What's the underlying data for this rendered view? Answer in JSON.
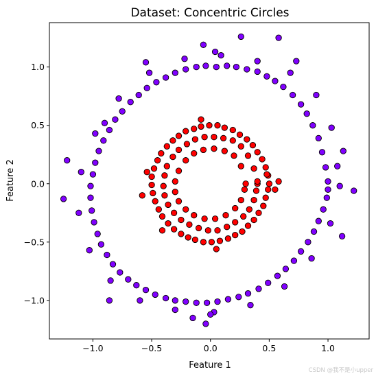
{
  "chart_data": {
    "type": "scatter",
    "title": "Dataset: Concentric Circles",
    "xlabel": "Feature 1",
    "ylabel": "Feature 2",
    "xlim": [
      -1.37,
      1.35
    ],
    "ylim": [
      -1.33,
      1.38
    ],
    "xticks": [
      -1.0,
      -0.5,
      0.0,
      0.5,
      1.0
    ],
    "xtick_labels": [
      "−1.0",
      "−0.5",
      "0.0",
      "0.5",
      "1.0"
    ],
    "yticks": [
      -1.0,
      -0.5,
      0.0,
      0.5,
      1.0
    ],
    "ytick_labels": [
      "−1.0",
      "−0.5",
      "0.0",
      "0.5",
      "1.0"
    ],
    "grid": false,
    "series": [
      {
        "color": "#8000ff",
        "shape": "ring",
        "approx_radius": 1.0,
        "x": [
          1.0,
          0.98,
          0.95,
          0.92,
          0.87,
          0.82,
          0.77,
          0.7,
          0.62,
          0.55,
          0.48,
          0.4,
          0.31,
          0.22,
          0.14,
          0.05,
          -0.04,
          -0.12,
          -0.21,
          -0.3,
          -0.38,
          -0.46,
          -0.54,
          -0.61,
          -0.68,
          -0.75,
          -0.81,
          -0.86,
          -0.91,
          -0.95,
          -0.98,
          -1.0,
          -1.02,
          -1.02,
          -1.01,
          -0.99,
          -0.96,
          -0.93,
          -0.88,
          -0.83,
          -0.77,
          -0.7,
          -0.63,
          -0.55,
          -0.47,
          -0.38,
          -0.3,
          -0.21,
          -0.12,
          -0.03,
          0.06,
          0.15,
          0.24,
          0.32,
          0.41,
          0.49,
          0.57,
          0.64,
          0.71,
          0.77,
          0.83,
          0.88,
          0.92,
          0.96,
          0.99,
          1.0,
          1.08,
          1.03,
          0.9,
          0.68,
          0.4,
          0.09,
          -0.22,
          -0.52,
          -0.78,
          -0.98,
          -1.1,
          -1.12,
          -1.03,
          -0.85,
          -0.6,
          -0.3,
          0.03,
          0.34,
          0.63,
          0.86,
          1.02,
          1.1,
          1.13,
          1.12,
          0.58,
          0.04,
          -1.25,
          1.22,
          -1.22,
          -0.9,
          -0.06,
          -0.04,
          0.0,
          0.73,
          -0.15,
          0.26,
          -0.55,
          -0.86
        ],
        "y": [
          0.02,
          0.14,
          0.27,
          0.39,
          0.5,
          0.6,
          0.68,
          0.76,
          0.83,
          0.88,
          0.92,
          0.96,
          0.98,
          1.0,
          1.01,
          1.0,
          1.01,
          1.0,
          0.98,
          0.95,
          0.91,
          0.87,
          0.82,
          0.76,
          0.7,
          0.62,
          0.55,
          0.46,
          0.37,
          0.28,
          0.18,
          0.08,
          -0.02,
          -0.12,
          -0.23,
          -0.33,
          -0.43,
          -0.52,
          -0.61,
          -0.69,
          -0.76,
          -0.82,
          -0.87,
          -0.91,
          -0.95,
          -0.98,
          -1.0,
          -1.01,
          -1.02,
          -1.02,
          -1.01,
          -0.99,
          -0.97,
          -0.94,
          -0.9,
          -0.85,
          -0.79,
          -0.73,
          -0.66,
          -0.58,
          -0.5,
          -0.41,
          -0.32,
          -0.22,
          -0.12,
          -0.05,
          0.15,
          0.48,
          0.76,
          0.95,
          1.05,
          1.1,
          1.07,
          0.95,
          0.73,
          0.43,
          0.1,
          -0.25,
          -0.57,
          -0.83,
          -1.0,
          -1.08,
          -1.1,
          -1.04,
          -0.88,
          -0.64,
          -0.34,
          -0.02,
          0.28,
          -0.45,
          1.25,
          1.13,
          -0.13,
          -0.06,
          0.2,
          0.52,
          1.19,
          -1.2,
          -1.12,
          1.05,
          -1.15,
          1.26,
          1.04,
          -1.0
        ]
      },
      {
        "color": "#ff0000",
        "shape": "ring",
        "approx_radius": 0.4,
        "x": [
          0.5,
          0.49,
          0.47,
          0.44,
          0.4,
          0.36,
          0.31,
          0.25,
          0.19,
          0.12,
          0.06,
          -0.01,
          -0.08,
          -0.14,
          -0.21,
          -0.27,
          -0.32,
          -0.37,
          -0.42,
          -0.45,
          -0.48,
          -0.5,
          -0.5,
          -0.49,
          -0.47,
          -0.44,
          -0.41,
          -0.36,
          -0.31,
          -0.25,
          -0.19,
          -0.13,
          -0.06,
          0.01,
          0.08,
          0.15,
          0.21,
          0.27,
          0.32,
          0.37,
          0.41,
          0.45,
          0.47,
          0.49,
          0.4,
          0.37,
          0.32,
          0.26,
          0.19,
          0.11,
          0.03,
          -0.05,
          -0.13,
          -0.2,
          -0.27,
          -0.32,
          -0.37,
          -0.39,
          -0.4,
          -0.39,
          -0.36,
          -0.31,
          -0.25,
          -0.18,
          -0.1,
          -0.02,
          0.06,
          0.14,
          0.21,
          0.28,
          0.33,
          0.37,
          0.39,
          0.4,
          0.3,
          0.26,
          0.2,
          0.12,
          0.03,
          -0.06,
          -0.14,
          -0.21,
          -0.27,
          -0.3,
          -0.3,
          -0.27,
          -0.21,
          -0.14,
          -0.05,
          0.04,
          0.13,
          0.21,
          0.26,
          0.29,
          0.55,
          0.48,
          -0.54,
          -0.58,
          -0.08,
          0.05,
          0.58,
          -0.41
        ],
        "y": [
          0.0,
          0.07,
          0.14,
          0.21,
          0.27,
          0.33,
          0.38,
          0.42,
          0.46,
          0.48,
          0.5,
          0.5,
          0.49,
          0.47,
          0.45,
          0.41,
          0.37,
          0.32,
          0.26,
          0.2,
          0.13,
          0.06,
          -0.01,
          -0.08,
          -0.15,
          -0.22,
          -0.28,
          -0.34,
          -0.39,
          -0.43,
          -0.46,
          -0.48,
          -0.5,
          -0.5,
          -0.49,
          -0.47,
          -0.44,
          -0.41,
          -0.36,
          -0.31,
          -0.25,
          -0.19,
          -0.12,
          -0.05,
          0.0,
          0.13,
          0.24,
          0.32,
          0.37,
          0.39,
          0.4,
          0.4,
          0.38,
          0.34,
          0.29,
          0.23,
          0.15,
          0.07,
          -0.02,
          -0.1,
          -0.18,
          -0.25,
          -0.31,
          -0.35,
          -0.38,
          -0.4,
          -0.4,
          -0.37,
          -0.33,
          -0.28,
          -0.22,
          -0.14,
          -0.06,
          0.02,
          0.0,
          0.15,
          0.24,
          0.28,
          0.3,
          0.29,
          0.26,
          0.2,
          0.11,
          0.02,
          -0.07,
          -0.15,
          -0.22,
          -0.27,
          -0.3,
          -0.3,
          -0.27,
          -0.21,
          -0.14,
          -0.05,
          -0.05,
          0.08,
          0.1,
          -0.1,
          0.55,
          -0.56,
          0.02,
          -0.4
        ]
      }
    ]
  },
  "watermark": "CSDN @我不是小upper"
}
